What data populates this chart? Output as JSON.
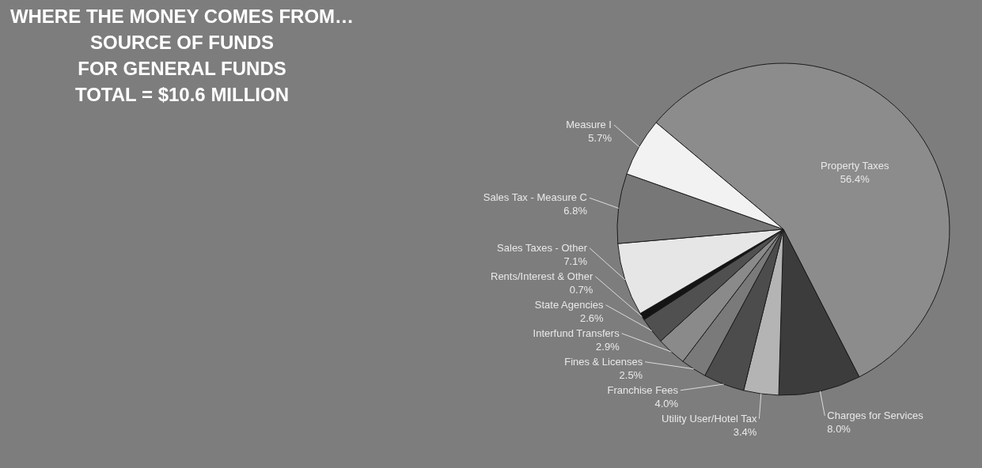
{
  "chart_data": {
    "type": "pie",
    "title": "WHERE THE MONEY COMES FROM…\nSOURCE OF FUNDS\nFOR GENERAL FUNDS\nTOTAL = $10.6 MILLION",
    "categories": [
      "Property Taxes",
      "Charges for Services",
      "Utility User/Hotel Tax",
      "Franchise Fees",
      "Fines & Licenses",
      "Interfund Transfers",
      "State Agencies",
      "Rents/Interest & Other",
      "Sales Taxes - Other",
      "Sales Tax - Measure C",
      "Measure I"
    ],
    "values": [
      56.4,
      8.0,
      3.4,
      4.0,
      2.5,
      2.9,
      2.6,
      0.7,
      7.1,
      6.8,
      5.7
    ],
    "value_labels": [
      "56.4%",
      "8.0%",
      "3.4%",
      "4.0%",
      "2.5%",
      "2.9%",
      "2.6%",
      "0.7%",
      "7.1%",
      "6.8%",
      "5.7%"
    ],
    "colors": [
      "#8c8c8c",
      "#3c3c3c",
      "#b4b4b4",
      "#4c4c4c",
      "#7a7a7a",
      "#8a8a8a",
      "#505050",
      "#141414",
      "#e6e6e6",
      "#777777",
      "#f2f2f2"
    ]
  }
}
